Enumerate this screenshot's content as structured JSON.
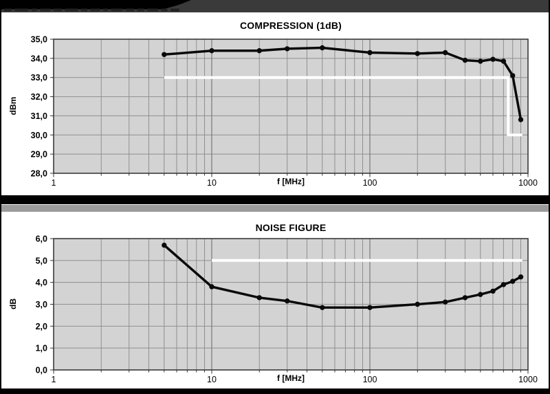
{
  "page": {
    "colors": {
      "header_bar": "#3a3a3a",
      "header_swoosh": "#000000",
      "page_bg": "#ffffff",
      "frame_edges": "#000000",
      "divider_black": "#000000",
      "divider_gray": "#9b9b9b",
      "plot_bg": "#d3d3d3",
      "grid_minor": "#8f8f8f",
      "grid_major": "#787878",
      "plot_frame": "#3a3a3a",
      "series": "#0a0a0a",
      "limit_line": "#ffffff",
      "tick": "#333333"
    }
  },
  "chart_data": [
    {
      "type": "line",
      "title": "COMPRESSION (1dB)",
      "xlabel": "f [MHz]",
      "ylabel": "dBm",
      "x_scale": "log",
      "xlim": [
        1,
        1000
      ],
      "ylim": [
        28,
        35
      ],
      "grid": true,
      "legend": null,
      "x_ticks": [
        1,
        10,
        100,
        1000
      ],
      "x_tick_labels": [
        "1",
        "10",
        "100",
        "1000"
      ],
      "y_ticks": [
        35,
        34,
        33,
        32,
        31,
        30,
        29,
        28
      ],
      "y_tick_labels": [
        "35,0",
        "34,0",
        "33,0",
        "32,0",
        "31,0",
        "30,0",
        "29,0",
        "28,0"
      ],
      "series": [
        {
          "name": "compression-1db",
          "x": [
            5,
            10,
            20,
            30,
            50,
            100,
            200,
            300,
            400,
            500,
            600,
            700,
            800,
            900
          ],
          "y": [
            34.2,
            34.4,
            34.4,
            34.5,
            34.55,
            34.3,
            34.25,
            34.3,
            33.9,
            33.85,
            33.95,
            33.85,
            33.1,
            30.8
          ]
        }
      ],
      "limit_line": {
        "name": "spec-limit-white",
        "points": [
          [
            5,
            33
          ],
          [
            750,
            33
          ],
          [
            750,
            30
          ],
          [
            920,
            30
          ]
        ]
      }
    },
    {
      "type": "line",
      "title": "NOISE FIGURE",
      "xlabel": "f [MHz]",
      "ylabel": "dB",
      "x_scale": "log",
      "xlim": [
        1,
        1000
      ],
      "ylim": [
        0,
        6
      ],
      "grid": true,
      "legend": null,
      "x_ticks": [
        1,
        10,
        100,
        1000
      ],
      "x_tick_labels": [
        "1",
        "10",
        "100",
        "1000"
      ],
      "y_ticks": [
        6,
        5,
        4,
        3,
        2,
        1,
        0
      ],
      "y_tick_labels": [
        "6,0",
        "5,0",
        "4,0",
        "3,0",
        "2,0",
        "1,0",
        "0,0"
      ],
      "series": [
        {
          "name": "noise-figure",
          "x": [
            5,
            10,
            20,
            30,
            50,
            100,
            200,
            300,
            400,
            500,
            600,
            700,
            800,
            900
          ],
          "y": [
            5.7,
            3.8,
            3.3,
            3.15,
            2.85,
            2.85,
            3.0,
            3.1,
            3.3,
            3.45,
            3.6,
            3.9,
            4.05,
            4.25
          ]
        }
      ],
      "limit_line": {
        "name": "spec-limit-white",
        "points": [
          [
            10,
            5
          ],
          [
            920,
            5
          ]
        ]
      }
    }
  ]
}
